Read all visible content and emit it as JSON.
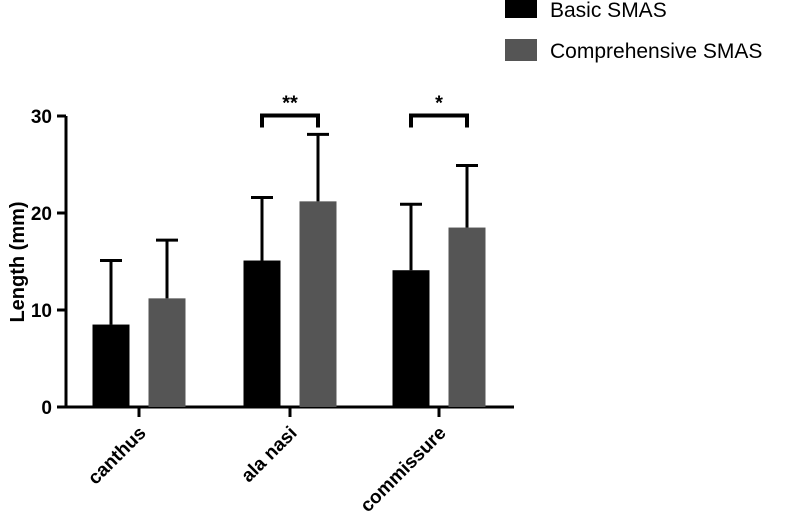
{
  "chart_data": {
    "type": "bar",
    "categories": [
      "canthus",
      "ala nasi",
      "commissure"
    ],
    "series": [
      {
        "name": "Basic SMAS",
        "color": "#000000",
        "values": [
          8.5,
          15.1,
          14.1
        ],
        "errors": [
          6.6,
          6.5,
          6.8
        ]
      },
      {
        "name": "Comprehensive SMAS",
        "color": "#555555",
        "values": [
          11.2,
          21.2,
          18.5
        ],
        "errors": [
          6.0,
          6.9,
          6.4
        ]
      }
    ],
    "ylabel": "Length (mm)",
    "xlabel": "",
    "ylim": [
      0,
      30
    ],
    "yticks": [
      0,
      10,
      20,
      30
    ],
    "legend_position": "top-right",
    "significance": [
      {
        "category": "ala nasi",
        "label": "**"
      },
      {
        "category": "commissure",
        "label": "*"
      }
    ]
  }
}
